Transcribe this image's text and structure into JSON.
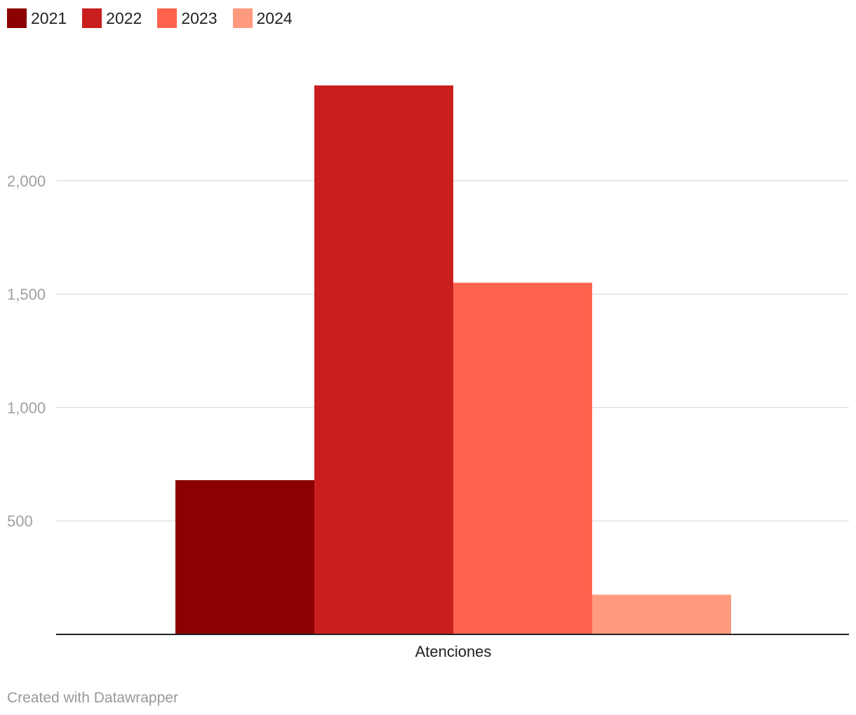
{
  "chart_data": {
    "type": "bar",
    "categories": [
      "Atenciones"
    ],
    "series": [
      {
        "name": "2021",
        "values": [
          680
        ],
        "color": "#8b0000"
      },
      {
        "name": "2022",
        "values": [
          2420
        ],
        "color": "#c91e1e"
      },
      {
        "name": "2023",
        "values": [
          1550
        ],
        "color": "#ff624d"
      },
      {
        "name": "2024",
        "values": [
          175
        ],
        "color": "#ff9a7e"
      }
    ],
    "yticks": [
      {
        "value": 500,
        "label": "500"
      },
      {
        "value": 1000,
        "label": "1,000"
      },
      {
        "value": 1500,
        "label": "1,500"
      },
      {
        "value": 2000,
        "label": "2,000"
      }
    ],
    "ylim": [
      0,
      2500
    ],
    "grid": true,
    "legend_position": "top-left"
  },
  "credit": "Created with Datawrapper"
}
